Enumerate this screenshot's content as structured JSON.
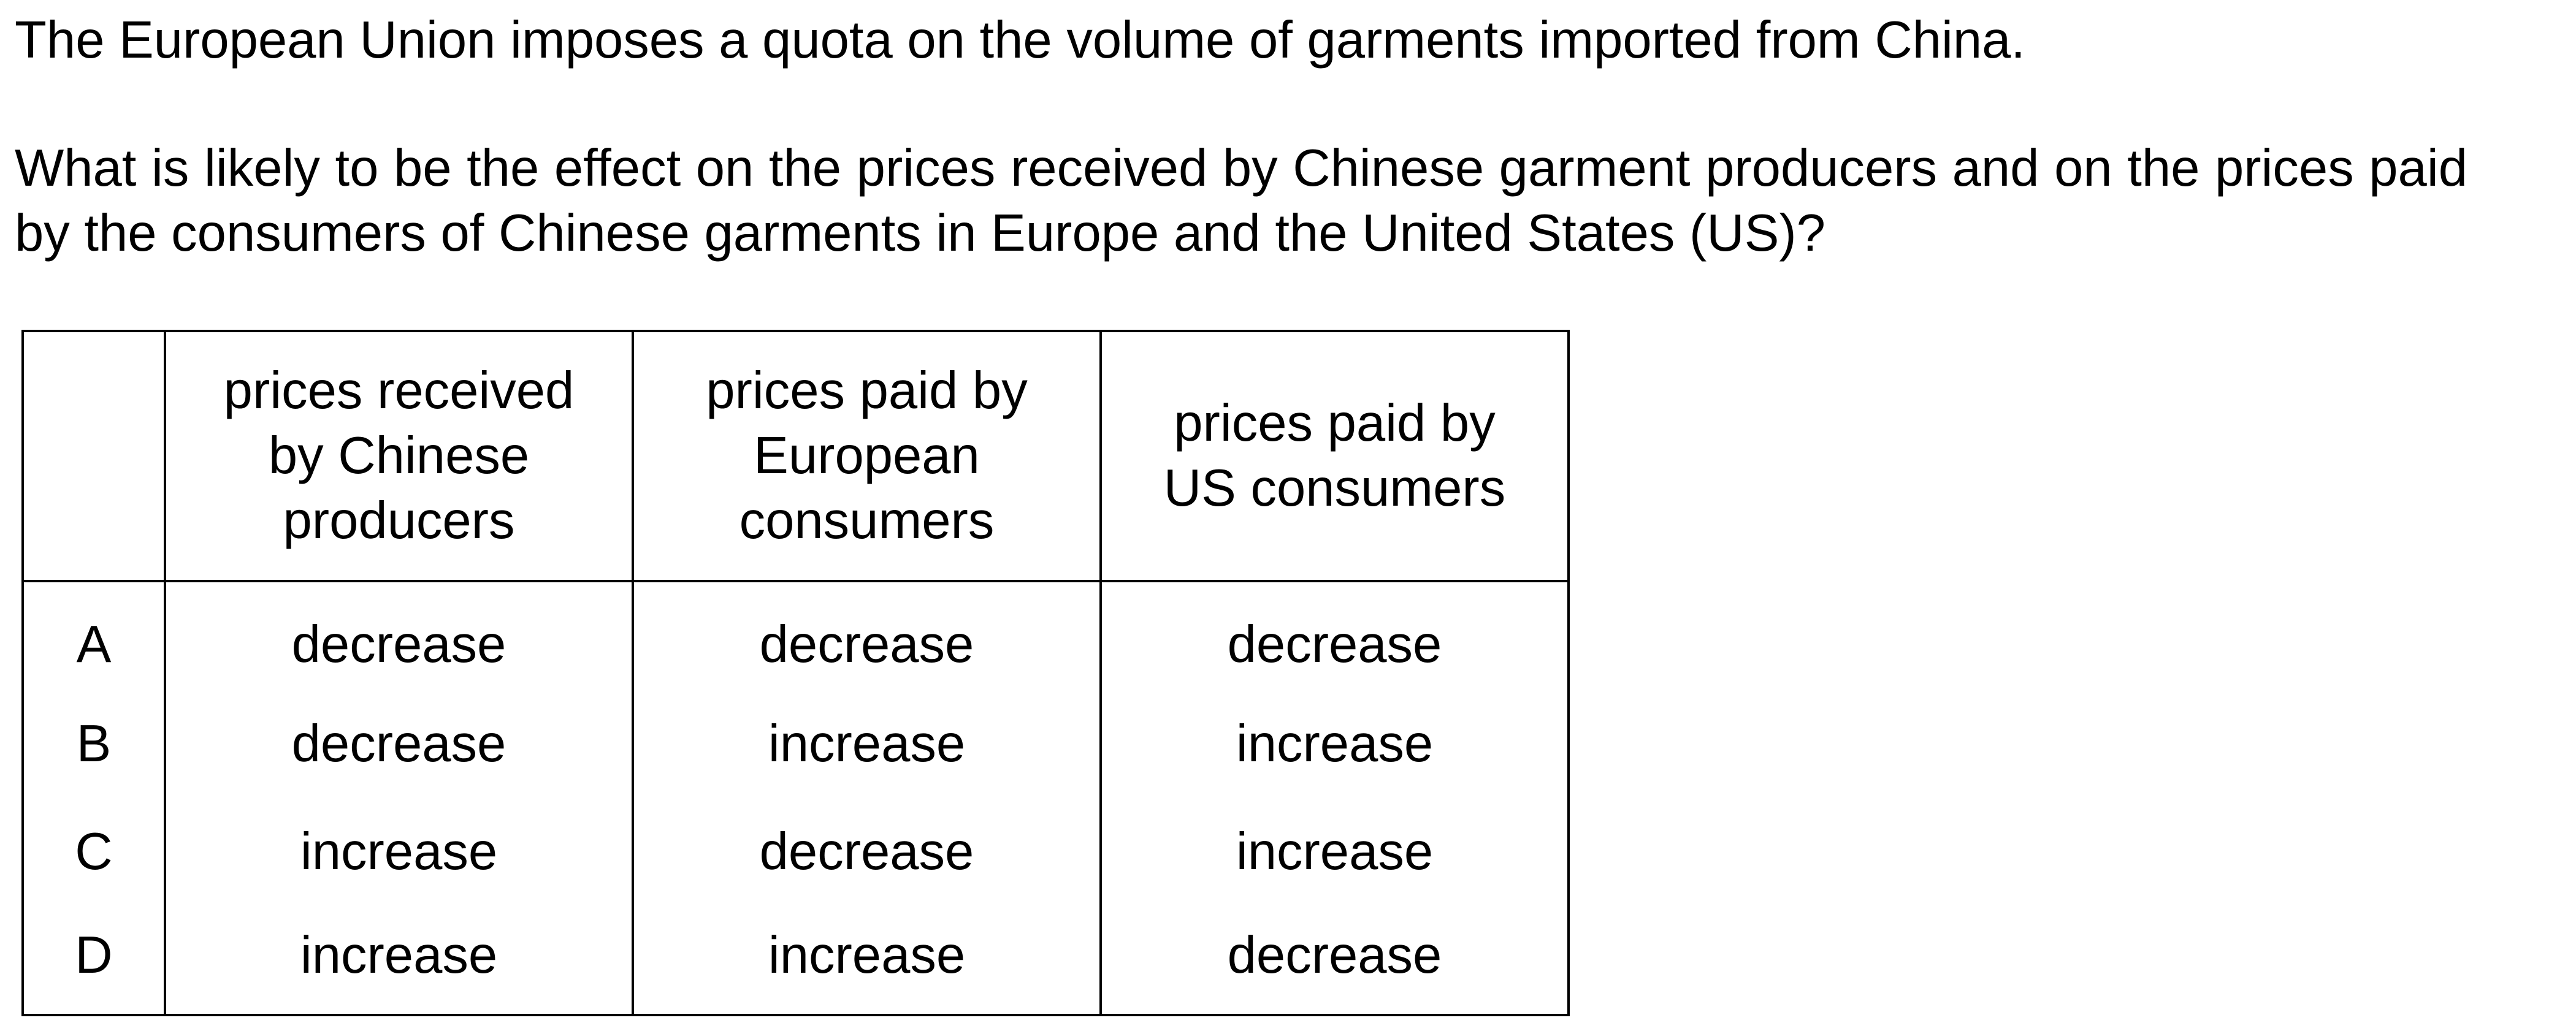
{
  "stem": "The European Union imposes a quota on the volume of garments imported from China.",
  "question": "What is likely to be the effect on the prices received by Chinese garment producers and on the prices paid by the consumers of Chinese garments in Europe and the United States (US)?",
  "table": {
    "headers": [
      "",
      [
        "prices received",
        "by Chinese",
        "producers"
      ],
      [
        "prices paid by",
        "European",
        "consumers"
      ],
      [
        "prices paid by",
        "US consumers"
      ]
    ],
    "rows": [
      {
        "letter": "A",
        "cells": [
          "decrease",
          "decrease",
          "decrease"
        ]
      },
      {
        "letter": "B",
        "cells": [
          "decrease",
          "increase",
          "increase"
        ]
      },
      {
        "letter": "C",
        "cells": [
          "increase",
          "decrease",
          "increase"
        ]
      },
      {
        "letter": "D",
        "cells": [
          "increase",
          "increase",
          "decrease"
        ]
      }
    ]
  }
}
